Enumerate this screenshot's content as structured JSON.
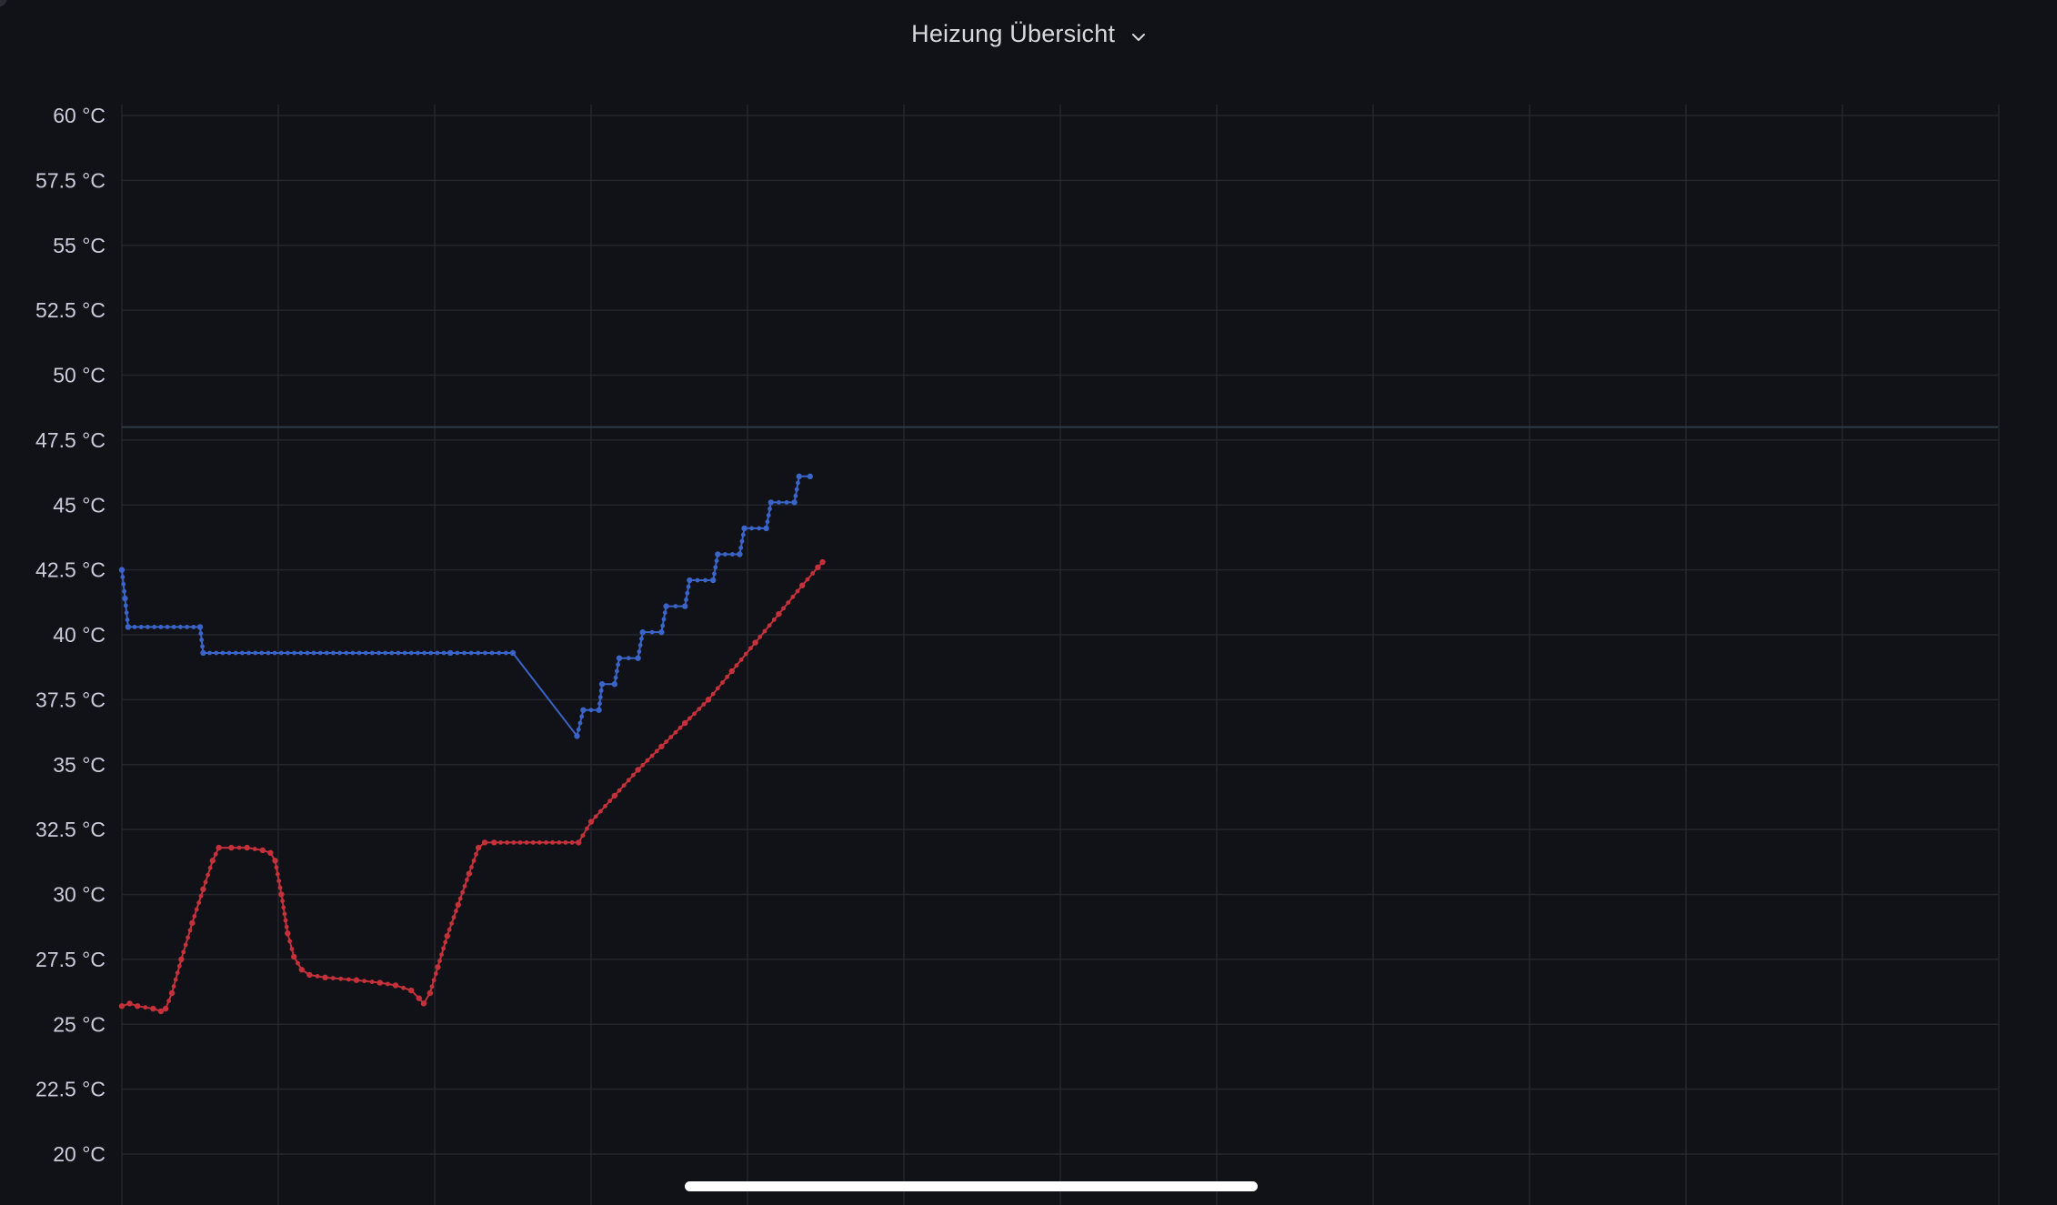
{
  "header": {
    "title": "Heizung Übersicht",
    "chevron_icon": "chevron-down-icon"
  },
  "colors": {
    "background": "#111217",
    "grid": "#24262e",
    "threshold": "#2e3a44",
    "series_blue": "#3a64c8",
    "series_red": "#c4313b",
    "text": "#ccccdc"
  },
  "chart_data": {
    "type": "line",
    "title": "",
    "xlabel": "",
    "ylabel": "",
    "ylim": [
      20,
      60
    ],
    "y_ticks": [
      "60 °C",
      "57.5 °C",
      "55 °C",
      "52.5 °C",
      "50 °C",
      "47.5 °C",
      "45 °C",
      "42.5 °C",
      "40 °C",
      "37.5 °C",
      "35 °C",
      "32.5 °C",
      "30 °C",
      "27.5 °C",
      "25 °C",
      "22.5 °C",
      "20 °C"
    ],
    "y_tick_values": [
      60,
      57.5,
      55,
      52.5,
      50,
      47.5,
      45,
      42.5,
      40,
      37.5,
      35,
      32.5,
      30,
      27.5,
      25,
      22.5,
      20
    ],
    "x_range": [
      0,
      12
    ],
    "x_grid": [
      0,
      1,
      2,
      3,
      4,
      5,
      6,
      7,
      8,
      9,
      10,
      11,
      12
    ],
    "grid": true,
    "threshold": 48,
    "legend": "none",
    "series": [
      {
        "color": "#3a64c8",
        "points": [
          [
            0.0,
            42.5
          ],
          [
            0.02,
            41.4
          ],
          [
            0.04,
            40.3
          ],
          [
            0.5,
            40.3
          ],
          [
            0.52,
            39.3
          ],
          [
            2.1,
            39.3
          ],
          [
            2.5,
            39.3
          ],
          [
            2.91,
            36.1
          ],
          [
            2.95,
            37.1
          ],
          [
            3.05,
            37.1
          ],
          [
            3.07,
            38.1
          ],
          [
            3.15,
            38.1
          ],
          [
            3.18,
            39.1
          ],
          [
            3.3,
            39.1
          ],
          [
            3.33,
            40.1
          ],
          [
            3.45,
            40.1
          ],
          [
            3.48,
            41.1
          ],
          [
            3.6,
            41.1
          ],
          [
            3.63,
            42.1
          ],
          [
            3.78,
            42.1
          ],
          [
            3.81,
            43.1
          ],
          [
            3.95,
            43.1
          ],
          [
            3.98,
            44.1
          ],
          [
            4.12,
            44.1
          ],
          [
            4.15,
            45.1
          ],
          [
            4.3,
            45.1
          ],
          [
            4.33,
            46.1
          ],
          [
            4.4,
            46.1
          ]
        ]
      },
      {
        "color": "#c4313b",
        "points": [
          [
            0.0,
            25.7
          ],
          [
            0.05,
            25.8
          ],
          [
            0.1,
            25.7
          ],
          [
            0.2,
            25.6
          ],
          [
            0.25,
            25.5
          ],
          [
            0.28,
            25.6
          ],
          [
            0.32,
            26.2
          ],
          [
            0.38,
            27.5
          ],
          [
            0.45,
            28.9
          ],
          [
            0.52,
            30.2
          ],
          [
            0.58,
            31.3
          ],
          [
            0.62,
            31.8
          ],
          [
            0.7,
            31.8
          ],
          [
            0.8,
            31.8
          ],
          [
            0.9,
            31.7
          ],
          [
            0.95,
            31.6
          ],
          [
            0.98,
            31.3
          ],
          [
            1.02,
            30.0
          ],
          [
            1.06,
            28.5
          ],
          [
            1.1,
            27.6
          ],
          [
            1.15,
            27.1
          ],
          [
            1.2,
            26.9
          ],
          [
            1.3,
            26.8
          ],
          [
            1.5,
            26.7
          ],
          [
            1.65,
            26.6
          ],
          [
            1.75,
            26.5
          ],
          [
            1.85,
            26.3
          ],
          [
            1.9,
            26.0
          ],
          [
            1.93,
            25.8
          ],
          [
            1.97,
            26.2
          ],
          [
            2.02,
            27.2
          ],
          [
            2.08,
            28.4
          ],
          [
            2.15,
            29.6
          ],
          [
            2.22,
            30.8
          ],
          [
            2.28,
            31.8
          ],
          [
            2.32,
            32.0
          ],
          [
            2.38,
            32.0
          ],
          [
            2.92,
            32.0
          ],
          [
            3.0,
            32.8
          ],
          [
            3.15,
            33.8
          ],
          [
            3.3,
            34.8
          ],
          [
            3.45,
            35.7
          ],
          [
            3.6,
            36.6
          ],
          [
            3.75,
            37.5
          ],
          [
            3.9,
            38.6
          ],
          [
            4.05,
            39.7
          ],
          [
            4.2,
            40.8
          ],
          [
            4.35,
            41.9
          ],
          [
            4.45,
            42.6
          ],
          [
            4.48,
            42.8
          ]
        ]
      }
    ]
  }
}
